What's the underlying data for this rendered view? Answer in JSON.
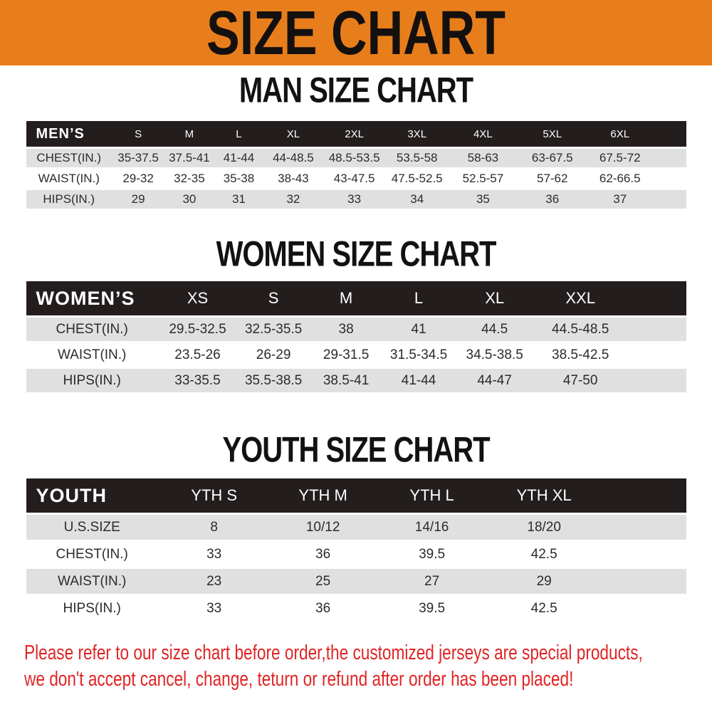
{
  "banner": {
    "title": "SIZE CHART",
    "bg_color": "#E87E1B",
    "text_color": "#141010"
  },
  "colors": {
    "table_header_bg": "#231D1D",
    "row_alt_gray": "#E0E0E0",
    "note_red": "#E02424"
  },
  "sections": [
    {
      "id": "men",
      "heading": "MAN SIZE CHART",
      "columns": [
        "MEN’S",
        "S",
        "M",
        "L",
        "XL",
        "2XL",
        "3XL",
        "4XL",
        "5XL",
        "6XL"
      ],
      "rows": [
        {
          "label": "CHEST(IN.)",
          "values": [
            "35-37.5",
            "37.5-41",
            "41-44",
            "44-48.5",
            "48.5-53.5",
            "53.5-58",
            "58-63",
            "63-67.5",
            "67.5-72"
          ]
        },
        {
          "label": "WAIST(IN.)",
          "values": [
            "29-32",
            "32-35",
            "35-38",
            "38-43",
            "43-47.5",
            "47.5-52.5",
            "52.5-57",
            "57-62",
            "62-66.5"
          ]
        },
        {
          "label": "HIPS(IN.)",
          "values": [
            "29",
            "30",
            "31",
            "32",
            "33",
            "34",
            "35",
            "36",
            "37"
          ]
        }
      ]
    },
    {
      "id": "women",
      "heading": "WOMEN SIZE CHART",
      "columns": [
        "WOMEN’S",
        "XS",
        "S",
        "M",
        "L",
        "XL",
        "XXL"
      ],
      "rows": [
        {
          "label": "CHEST(IN.)",
          "values": [
            "29.5-32.5",
            "32.5-35.5",
            "38",
            "41",
            "44.5",
            "44.5-48.5"
          ]
        },
        {
          "label": "WAIST(IN.)",
          "values": [
            "23.5-26",
            "26-29",
            "29-31.5",
            "31.5-34.5",
            "34.5-38.5",
            "38.5-42.5"
          ]
        },
        {
          "label": "HIPS(IN.)",
          "values": [
            "33-35.5",
            "35.5-38.5",
            "38.5-41",
            "41-44",
            "44-47",
            "47-50"
          ]
        }
      ]
    },
    {
      "id": "youth",
      "heading": "YOUTH SIZE CHART",
      "columns": [
        "YOUTH",
        "YTH S",
        "YTH M",
        "YTH L",
        "YTH XL"
      ],
      "rows": [
        {
          "label": "U.S.SIZE",
          "values": [
            "8",
            "10/12",
            "14/16",
            "18/20"
          ]
        },
        {
          "label": "CHEST(IN.)",
          "values": [
            "33",
            "36",
            "39.5",
            "42.5"
          ]
        },
        {
          "label": "WAIST(IN.)",
          "values": [
            "23",
            "25",
            "27",
            "29"
          ]
        },
        {
          "label": "HIPS(IN.)",
          "values": [
            "33",
            "36",
            "39.5",
            "42.5"
          ]
        }
      ]
    }
  ],
  "footer": {
    "line1": "Please refer to our size chart before order,the customized jerseys are special products,",
    "line2": "we don't accept cancel, change, teturn or refund after order has been placed!"
  }
}
